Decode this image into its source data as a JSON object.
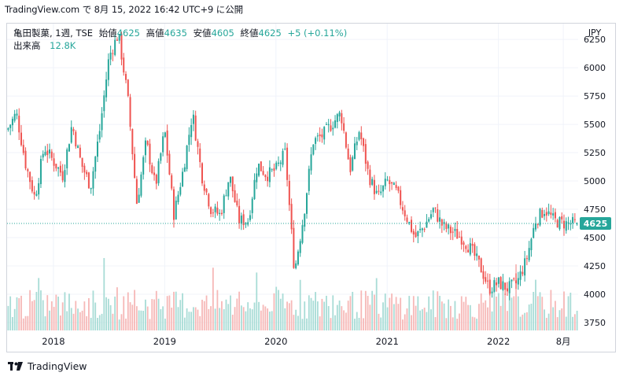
{
  "header_text": "TradingView.com で 8月 15, 2022 16:42 UTC+9 に公開",
  "legend": {
    "title": "亀田製菓, 1週, TSE",
    "open_label": "始値",
    "open": "4625",
    "high_label": "高値",
    "high": "4635",
    "low_label": "安値",
    "low": "4605",
    "close_label": "終値",
    "close": "4625",
    "change": "+5 (+0.11%)",
    "volume_label": "出来高",
    "volume": "12.8K"
  },
  "currency": "JPY",
  "last_price_badge": "4625",
  "footer_brand": "TradingView",
  "colors": {
    "up": "#26a69a",
    "down": "#ef5350",
    "badge": "#26a69a",
    "grid": "#f0f3fa",
    "text": "#131722"
  },
  "icons": [
    "tradingview-logo-icon"
  ],
  "chart_data": {
    "type": "candlestick",
    "title": "亀田製菓, 1週, TSE",
    "ylabel": "JPY",
    "y_ticks": [
      3750,
      4000,
      4250,
      4500,
      4750,
      5000,
      5250,
      5500,
      5750,
      6000,
      6250
    ],
    "ylim": [
      3680,
      6390
    ],
    "x_ticks": [
      "2018",
      "2019",
      "2020",
      "2021",
      "2022",
      "8月"
    ],
    "last_price": 4625,
    "grid": true,
    "series_path": [
      [
        "2017-08",
        5450
      ],
      [
        "2017-09",
        5600
      ],
      [
        "2017-10",
        5150
      ],
      [
        "2017-11",
        4850
      ],
      [
        "2017-12",
        5300
      ],
      [
        "2018-02",
        5050
      ],
      [
        "2018-03",
        5500
      ],
      [
        "2018-04",
        5150
      ],
      [
        "2018-05",
        4950
      ],
      [
        "2018-06",
        5450
      ],
      [
        "2018-07",
        6100
      ],
      [
        "2018-08",
        6300
      ],
      [
        "2018-09",
        5750
      ],
      [
        "2018-10",
        4800
      ],
      [
        "2018-11",
        5350
      ],
      [
        "2018-12",
        4950
      ],
      [
        "2019-01",
        5450
      ],
      [
        "2019-02",
        4700
      ],
      [
        "2019-03",
        5100
      ],
      [
        "2019-04",
        5600
      ],
      [
        "2019-05",
        5050
      ],
      [
        "2019-06",
        4750
      ],
      [
        "2019-07",
        4700
      ],
      [
        "2019-08",
        5050
      ],
      [
        "2019-09",
        4650
      ],
      [
        "2019-10",
        4650
      ],
      [
        "2019-11",
        5150
      ],
      [
        "2019-12",
        5050
      ],
      [
        "2020-01",
        5100
      ],
      [
        "2020-02",
        5250
      ],
      [
        "2020-03",
        4200
      ],
      [
        "2020-04",
        4700
      ],
      [
        "2020-05",
        5350
      ],
      [
        "2020-06",
        5400
      ],
      [
        "2020-07",
        5500
      ],
      [
        "2020-08",
        5600
      ],
      [
        "2020-09",
        5100
      ],
      [
        "2020-10",
        5450
      ],
      [
        "2020-11",
        5050
      ],
      [
        "2020-12",
        4850
      ],
      [
        "2021-01",
        5000
      ],
      [
        "2021-02",
        4900
      ],
      [
        "2021-03",
        4700
      ],
      [
        "2021-04",
        4500
      ],
      [
        "2021-05",
        4600
      ],
      [
        "2021-06",
        4750
      ],
      [
        "2021-07",
        4600
      ],
      [
        "2021-08",
        4550
      ],
      [
        "2021-09",
        4500
      ],
      [
        "2021-10",
        4400
      ],
      [
        "2021-11",
        4250
      ],
      [
        "2021-12",
        4050
      ],
      [
        "2022-01",
        4100
      ],
      [
        "2022-02",
        4050
      ],
      [
        "2022-03",
        4100
      ],
      [
        "2022-04",
        4300
      ],
      [
        "2022-05",
        4650
      ],
      [
        "2022-06",
        4750
      ],
      [
        "2022-07",
        4650
      ],
      [
        "2022-08",
        4625
      ]
    ],
    "volume_scale": {
      "max_shares": 55000
    }
  }
}
